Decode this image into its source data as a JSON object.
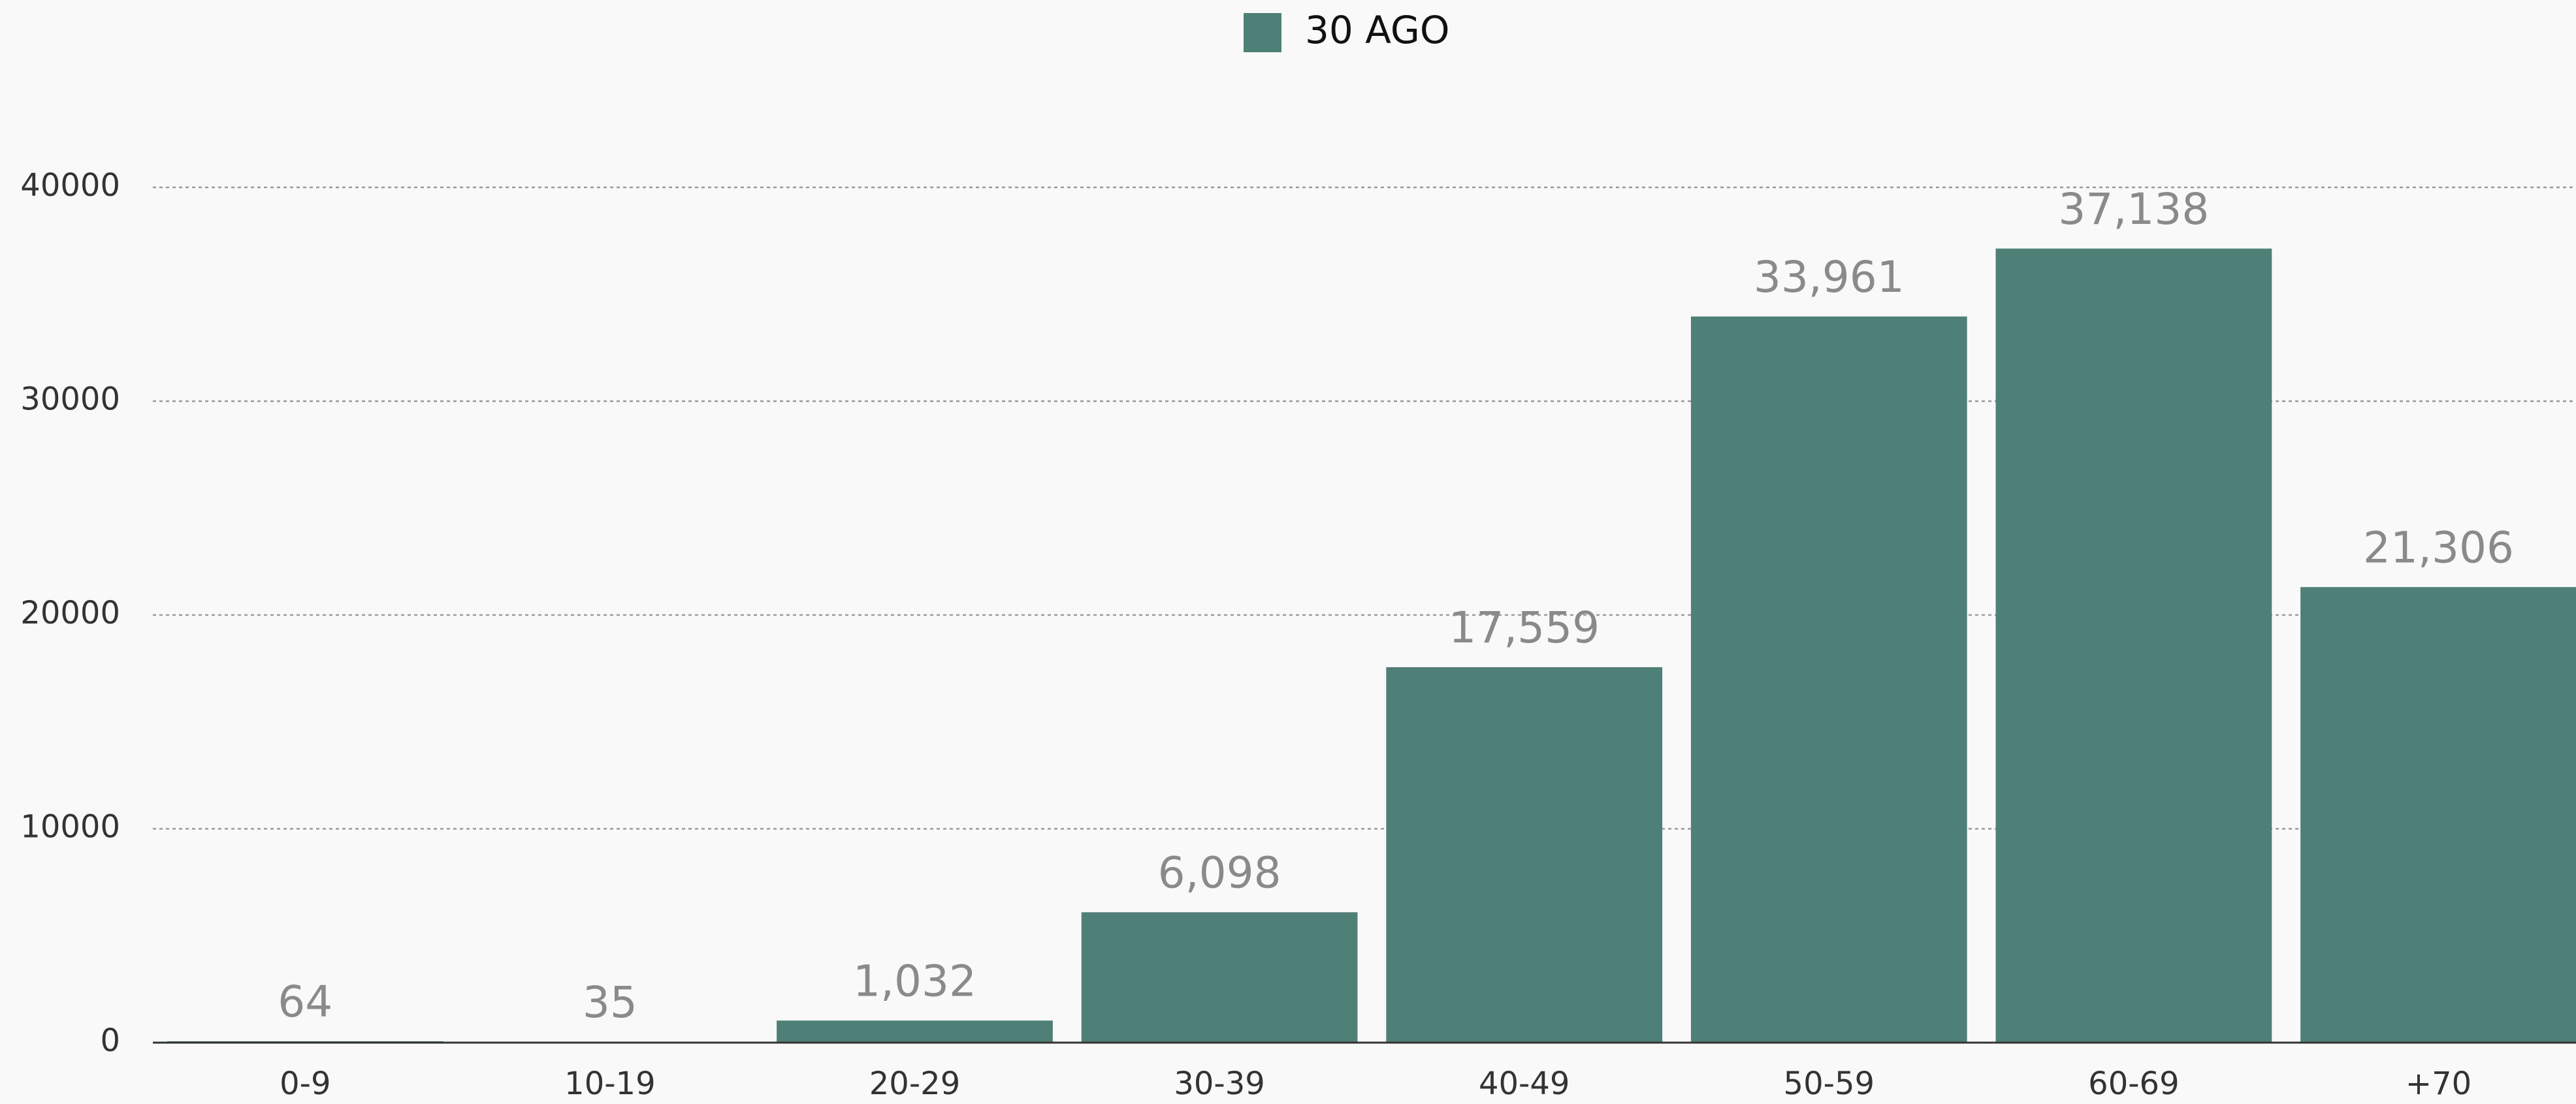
{
  "chart_data": {
    "type": "bar",
    "legend": "30 AGO",
    "color": "#4e8077",
    "categories": [
      "0-9",
      "10-19",
      "20-29",
      "30-39",
      "40-49",
      "50-59",
      "60-69",
      "+70"
    ],
    "values": [
      64,
      35,
      1032,
      6098,
      17559,
      33961,
      37138,
      21306
    ],
    "value_labels": [
      "64",
      "35",
      "1,032",
      "6,098",
      "17,559",
      "33,961",
      "37,138",
      "21,306"
    ],
    "ylim": [
      0,
      40000
    ],
    "yticks": [
      0,
      10000,
      20000,
      30000,
      40000
    ],
    "grid": true
  }
}
